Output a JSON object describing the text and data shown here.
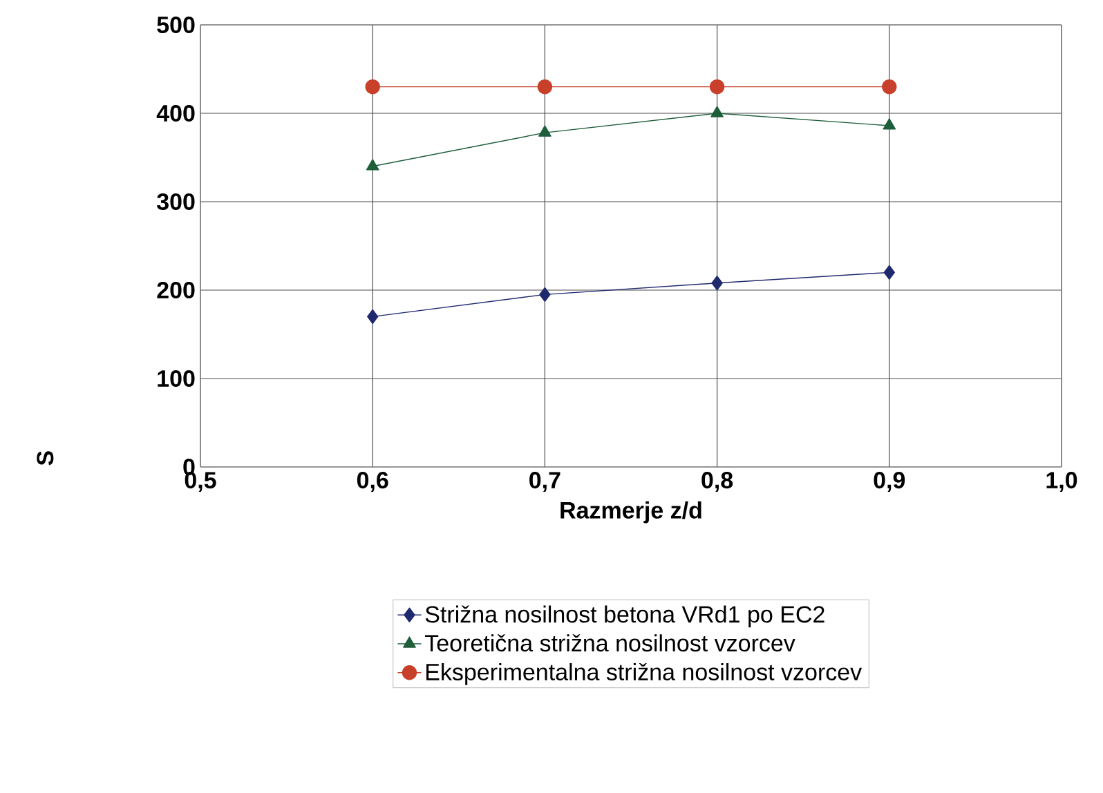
{
  "chart_data": {
    "type": "line",
    "xlabel": "Razmerje z/d",
    "ylabel": "S",
    "x": [
      0.6,
      0.7,
      0.8,
      0.9
    ],
    "series": [
      {
        "name": "Strižna nosilnost betona VRd1 po EC2",
        "color": "#1f2a6e",
        "marker": "diamond",
        "values": [
          170,
          195,
          208,
          220
        ]
      },
      {
        "name": "Teoretična strižna nosilnost vzorcev",
        "color": "#1e5e3a",
        "marker": "triangle",
        "values": [
          340,
          378,
          400,
          386
        ]
      },
      {
        "name": "Eksperimentalna strižna nosilnost vzorcev",
        "color": "#c8402a",
        "marker": "circle",
        "values": [
          430,
          430,
          430,
          430
        ]
      }
    ],
    "xlim": [
      0.5,
      1.0
    ],
    "xticks": [
      {
        "value": 0.5,
        "label": "0,5"
      },
      {
        "value": 0.6,
        "label": "0,6"
      },
      {
        "value": 0.7,
        "label": "0,7"
      },
      {
        "value": 0.8,
        "label": "0,8"
      },
      {
        "value": 0.9,
        "label": "0,9"
      },
      {
        "value": 1.0,
        "label": "1,0"
      }
    ],
    "ylim": [
      0,
      500
    ],
    "yticks": [
      0,
      100,
      200,
      300,
      400,
      500
    ],
    "grid": true,
    "legend": "bottom"
  }
}
